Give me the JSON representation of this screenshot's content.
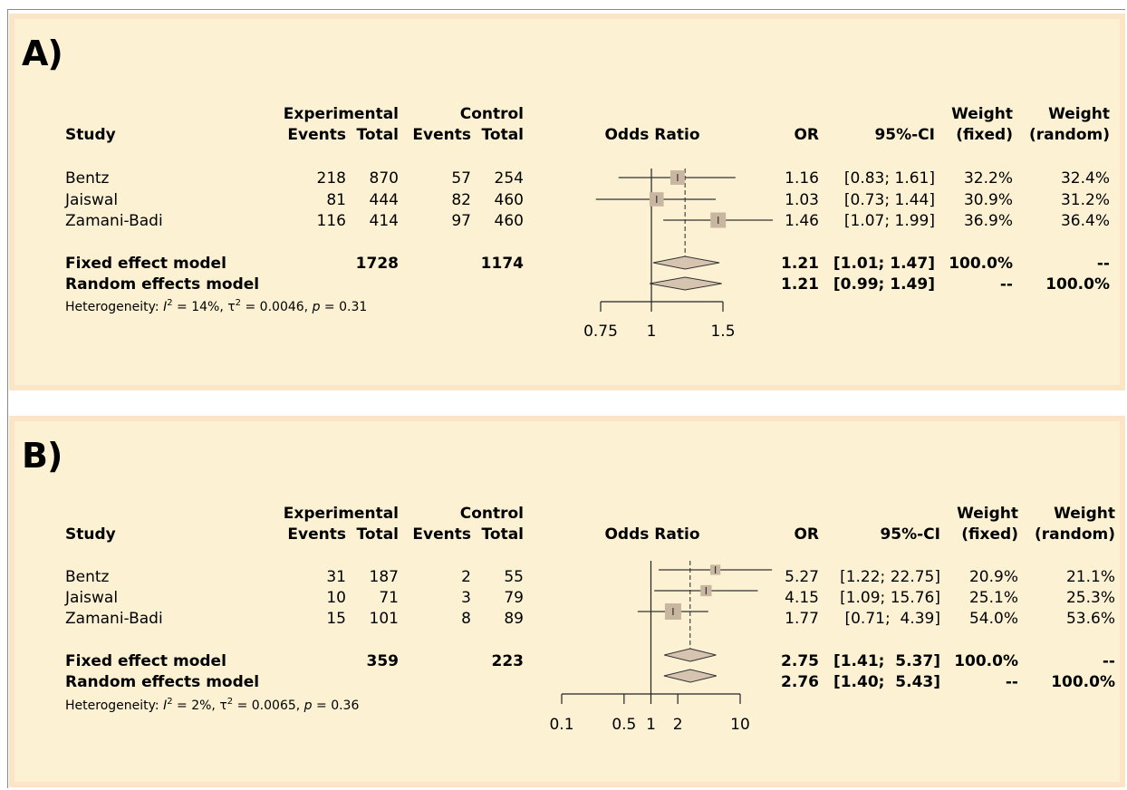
{
  "chart_data": [
    {
      "type": "forest",
      "panel_label": "A)",
      "header": {
        "study": "Study",
        "experimental": "Experimental",
        "control": "Control",
        "events": "Events",
        "total": "Total",
        "odds_ratio": "Odds Ratio",
        "or": "OR",
        "ci": "95%-CI",
        "weight": "Weight",
        "fixed": "(fixed)",
        "random": "(random)"
      },
      "scale": "log",
      "null_value": 1,
      "xlim": [
        0.75,
        1.5
      ],
      "ticks": [
        0.75,
        1,
        1.5
      ],
      "tick_labels": [
        "0.75",
        "1",
        "1.5"
      ],
      "studies": [
        {
          "name": "Bentz",
          "exp_events": "218",
          "exp_total": "870",
          "ctl_events": "57",
          "ctl_total": "254",
          "or": 1.16,
          "lo": 0.83,
          "hi": 1.61,
          "or_text": "1.16",
          "ci_text": "[0.83; 1.61]",
          "w_fixed": 32.2,
          "w_fixed_text": "32.2%",
          "w_random_text": "32.4%"
        },
        {
          "name": "Jaiswal",
          "exp_events": "81",
          "exp_total": "444",
          "ctl_events": "82",
          "ctl_total": "460",
          "or": 1.03,
          "lo": 0.73,
          "hi": 1.44,
          "or_text": "1.03",
          "ci_text": "[0.73; 1.44]",
          "w_fixed": 30.9,
          "w_fixed_text": "30.9%",
          "w_random_text": "31.2%"
        },
        {
          "name": "Zamani-Badi",
          "exp_events": "116",
          "exp_total": "414",
          "ctl_events": "97",
          "ctl_total": "460",
          "or": 1.46,
          "lo": 1.07,
          "hi": 1.99,
          "or_text": "1.46",
          "ci_text": "[1.07; 1.99]",
          "w_fixed": 36.9,
          "w_fixed_text": "36.9%",
          "w_random_text": "36.4%"
        }
      ],
      "fixed": {
        "label": "Fixed effect model",
        "exp_total": "1728",
        "ctl_total": "1174",
        "or": 1.21,
        "lo": 1.01,
        "hi": 1.47,
        "or_text": "1.21",
        "ci_text": "[1.01; 1.47]",
        "w_fixed_text": "100.0%",
        "w_random_text": "--"
      },
      "random": {
        "label": "Random effects model",
        "or": 1.21,
        "lo": 0.99,
        "hi": 1.49,
        "or_text": "1.21",
        "ci_text": "[0.99; 1.49]",
        "w_fixed_text": "--",
        "w_random_text": "100.0%"
      },
      "heterogeneity": {
        "prefix": "Heterogeneity: ",
        "i2": "= 14%, ",
        "tau2": "= 0.0046, ",
        "p": "= 0.31"
      }
    },
    {
      "type": "forest",
      "panel_label": "B)",
      "header": {
        "study": "Study",
        "experimental": "Experimental",
        "control": "Control",
        "events": "Events",
        "total": "Total",
        "odds_ratio": "Odds Ratio",
        "or": "OR",
        "ci": "95%-CI",
        "weight": "Weight",
        "fixed": "(fixed)",
        "random": "(random)"
      },
      "scale": "log",
      "null_value": 1,
      "xlim": [
        0.1,
        10
      ],
      "ticks": [
        0.1,
        0.5,
        1,
        2,
        10
      ],
      "tick_labels": [
        "0.1",
        "0.5",
        "1",
        "2",
        "10"
      ],
      "studies": [
        {
          "name": "Bentz",
          "exp_events": "31",
          "exp_total": "187",
          "ctl_events": "2",
          "ctl_total": "55",
          "or": 5.27,
          "lo": 1.22,
          "hi": 22.75,
          "or_text": "5.27",
          "ci_text": "[1.22; 22.75]",
          "w_fixed": 20.9,
          "w_fixed_text": "20.9%",
          "w_random_text": "21.1%"
        },
        {
          "name": "Jaiswal",
          "exp_events": "10",
          "exp_total": "71",
          "ctl_events": "3",
          "ctl_total": "79",
          "or": 4.15,
          "lo": 1.09,
          "hi": 15.76,
          "or_text": "4.15",
          "ci_text": "[1.09; 15.76]",
          "w_fixed": 25.1,
          "w_fixed_text": "25.1%",
          "w_random_text": "25.3%"
        },
        {
          "name": "Zamani-Badi",
          "exp_events": "15",
          "exp_total": "101",
          "ctl_events": "8",
          "ctl_total": "89",
          "or": 1.77,
          "lo": 0.71,
          "hi": 4.39,
          "or_text": "1.77",
          "ci_text": "[0.71;  4.39]",
          "w_fixed": 54.0,
          "w_fixed_text": "54.0%",
          "w_random_text": "53.6%"
        }
      ],
      "fixed": {
        "label": "Fixed effect model",
        "exp_total": "359",
        "ctl_total": "223",
        "or": 2.75,
        "lo": 1.41,
        "hi": 5.37,
        "or_text": "2.75",
        "ci_text": "[1.41;  5.37]",
        "w_fixed_text": "100.0%",
        "w_random_text": "--"
      },
      "random": {
        "label": "Random effects model",
        "or": 2.76,
        "lo": 1.4,
        "hi": 5.43,
        "or_text": "2.76",
        "ci_text": "[1.40;  5.43]",
        "w_fixed_text": "--",
        "w_random_text": "100.0%"
      },
      "heterogeneity": {
        "prefix": "Heterogeneity: ",
        "i2": "= 2%, ",
        "tau2": "= 0.0065, ",
        "p": "= 0.36"
      }
    }
  ],
  "colors": {
    "panel_bg": "#fcf2d3",
    "panel_border": "#fbe5c6",
    "square": "#c9b6a1",
    "diamond": "#d6c4b1",
    "line": "#333333"
  }
}
